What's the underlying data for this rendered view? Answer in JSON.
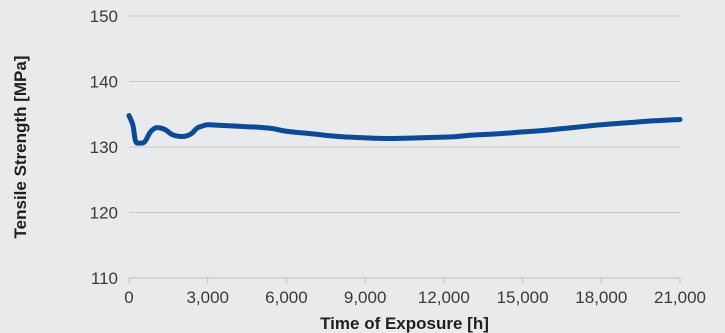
{
  "chart_data": {
    "type": "line",
    "title": "",
    "xlabel": "Time of Exposure [h]",
    "ylabel": "Tensile Strength [MPa]",
    "xlim": [
      0,
      21000
    ],
    "ylim": [
      110,
      150
    ],
    "x_ticks": [
      0,
      3000,
      6000,
      9000,
      12000,
      15000,
      18000,
      21000
    ],
    "x_tick_labels": [
      "0",
      "3,000",
      "6,000",
      "9,000",
      "12,000",
      "15,000",
      "18,000",
      "21,000"
    ],
    "y_ticks": [
      110,
      120,
      130,
      140,
      150
    ],
    "y_tick_labels": [
      "110",
      "120",
      "130",
      "140",
      "150"
    ],
    "grid": "horizontal",
    "legend": "none",
    "series": [
      {
        "color": "#0a4a97",
        "x": [
          0,
          150,
          250,
          400,
          600,
          800,
          1000,
          1200,
          1400,
          1600,
          1800,
          2000,
          2200,
          2400,
          2600,
          2800,
          3000,
          3500,
          4000,
          4500,
          5000,
          5500,
          6000,
          7000,
          8000,
          9000,
          10000,
          11000,
          12000,
          12500,
          13000,
          14000,
          15000,
          16000,
          17000,
          18000,
          19000,
          20000,
          21000
        ],
        "y": [
          134.8,
          133.3,
          130.9,
          130.6,
          130.8,
          132.2,
          132.9,
          132.9,
          132.6,
          132.0,
          131.7,
          131.6,
          131.7,
          132.1,
          132.9,
          133.2,
          133.4,
          133.3,
          133.2,
          133.1,
          133.0,
          132.8,
          132.4,
          132.0,
          131.6,
          131.4,
          131.3,
          131.4,
          131.5,
          131.6,
          131.8,
          132.0,
          132.3,
          132.6,
          133.0,
          133.4,
          133.7,
          134.0,
          134.2
        ]
      }
    ]
  }
}
